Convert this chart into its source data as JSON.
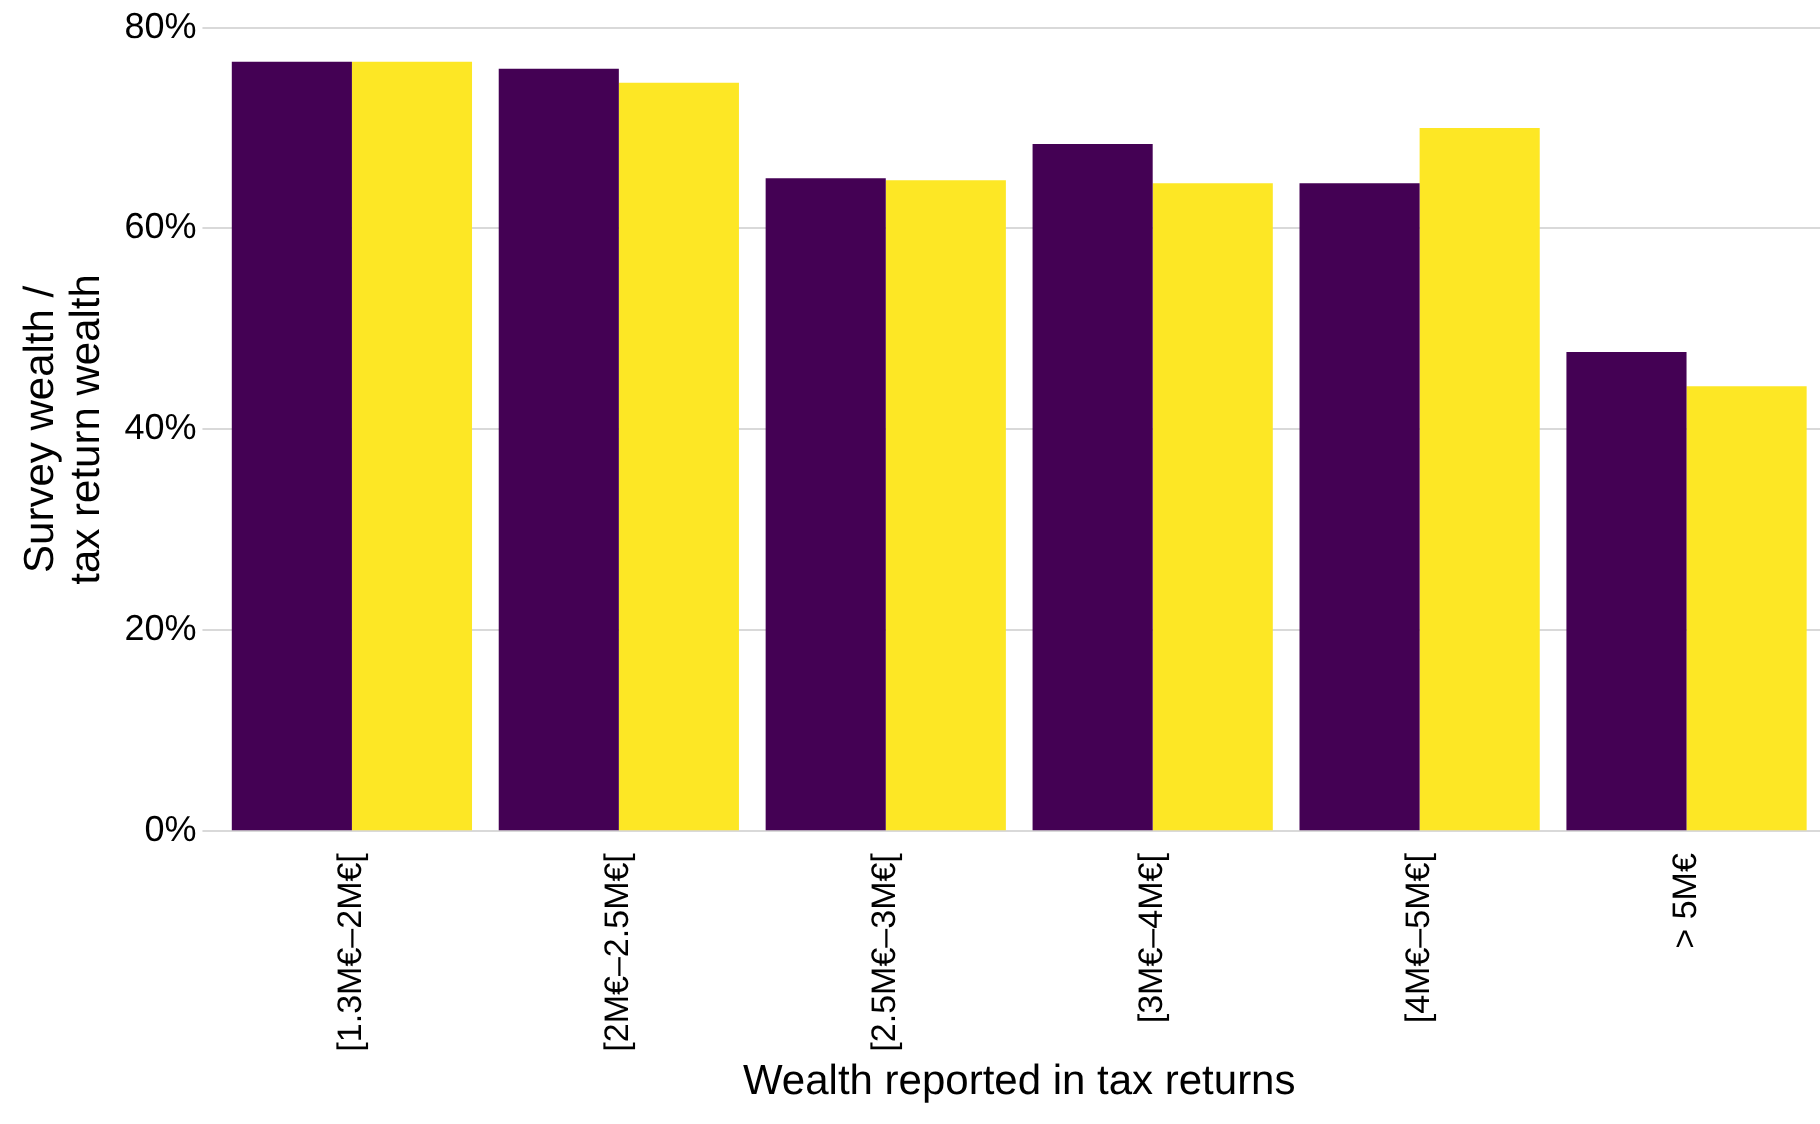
{
  "chart_data": {
    "type": "bar",
    "xlabel": "Wealth reported in tax returns",
    "ylabel": "Survey wealth /\ntax return wealth",
    "categories": [
      "[1.3M€–2M€[",
      "[2M€–2.5M€[",
      "[2.5M€–3M€[",
      "[3M€–4M€[",
      "[4M€–5M€[",
      "> 5M€"
    ],
    "series": [
      {
        "color": "#440154",
        "values": [
          76.6,
          75.9,
          65.0,
          68.4,
          64.5,
          47.7
        ]
      },
      {
        "color": "#fde725",
        "values": [
          76.6,
          74.5,
          64.8,
          64.5,
          70.0,
          44.3
        ]
      }
    ],
    "ylim": [
      0,
      80
    ],
    "yticks": [
      {
        "value": 0,
        "label": "0%"
      },
      {
        "value": 20,
        "label": "20%"
      },
      {
        "value": 40,
        "label": "40%"
      },
      {
        "value": 60,
        "label": "60%"
      },
      {
        "value": 80,
        "label": "80%"
      }
    ],
    "grid": "y",
    "legend": false
  }
}
